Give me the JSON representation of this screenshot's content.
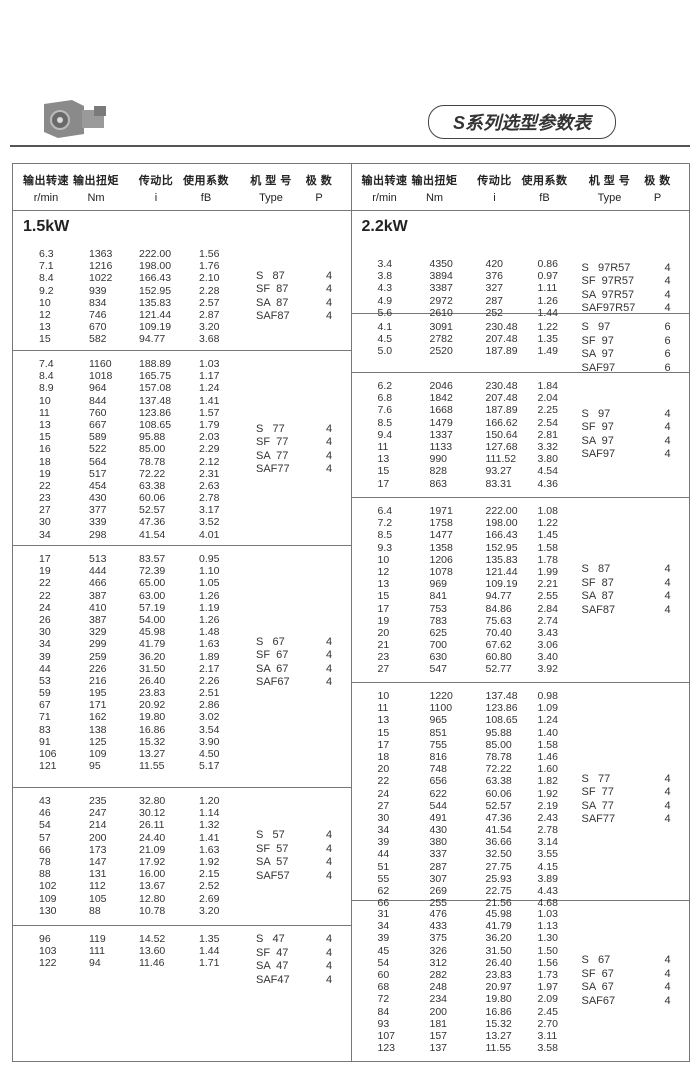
{
  "title": "S系列选型参数表",
  "header": {
    "speed_cn": "输出转速",
    "speed_en": "r/min",
    "torque_cn": "输出扭矩",
    "torque_en": "Nm",
    "ratio_cn": "传动比",
    "ratio_en": "i",
    "factor_cn": "使用系数",
    "factor_en": "fB",
    "type_cn": "机 型 号",
    "type_en": "Type",
    "poles_cn": "极  数",
    "poles_en": "P"
  },
  "sections": [
    {
      "power": "1.5kW",
      "groups": [
        {
          "rows": [
            [
              "6.3",
              "1363",
              "222.00",
              "1.56"
            ],
            [
              "7.1",
              "1216",
              "198.00",
              "1.76"
            ],
            [
              "8.4",
              "1022",
              "166.43",
              "2.10"
            ],
            [
              "9.2",
              "939",
              "152.95",
              "2.28"
            ],
            [
              "10",
              "834",
              "135.83",
              "2.57"
            ],
            [
              "12",
              "746",
              "121.44",
              "2.87"
            ],
            [
              "13",
              "670",
              "109.19",
              "3.20"
            ],
            [
              "15",
              "582",
              "94.77",
              "3.68"
            ]
          ],
          "types": [
            "S   87",
            "SF  87",
            "SA  87",
            "SAF87"
          ],
          "poles": [
            "4",
            "4",
            "4",
            "4"
          ]
        },
        {
          "rows": [
            [
              "7.4",
              "1160",
              "188.89",
              "1.03"
            ],
            [
              "8.4",
              "1018",
              "165.75",
              "1.17"
            ],
            [
              "8.9",
              "964",
              "157.08",
              "1.24"
            ],
            [
              "10",
              "844",
              "137.48",
              "1.41"
            ],
            [
              "11",
              "760",
              "123.86",
              "1.57"
            ],
            [
              "13",
              "667",
              "108.65",
              "1.79"
            ],
            [
              "15",
              "589",
              "95.88",
              "2.03"
            ],
            [
              "16",
              "522",
              "85.00",
              "2.29"
            ],
            [
              "18",
              "564",
              "78.78",
              "2.12"
            ],
            [
              "19",
              "517",
              "72.22",
              "2.31"
            ],
            [
              "22",
              "454",
              "63.38",
              "2.63"
            ],
            [
              "23",
              "430",
              "60.06",
              "2.78"
            ],
            [
              "27",
              "377",
              "52.57",
              "3.17"
            ],
            [
              "30",
              "339",
              "47.36",
              "3.52"
            ],
            [
              "34",
              "298",
              "41.54",
              "4.01"
            ]
          ],
          "types": [
            "S   77",
            "SF  77",
            "SA  77",
            "SAF77"
          ],
          "poles": [
            "4",
            "4",
            "4",
            "4"
          ]
        },
        {
          "rows": [
            [
              "17",
              "513",
              "83.57",
              "0.95"
            ],
            [
              "19",
              "444",
              "72.39",
              "1.10"
            ],
            [
              "22",
              "466",
              "65.00",
              "1.05"
            ],
            [
              "22",
              "387",
              "63.00",
              "1.26"
            ],
            [
              "24",
              "410",
              "57.19",
              "1.19"
            ],
            [
              "26",
              "387",
              "54.00",
              "1.26"
            ],
            [
              "30",
              "329",
              "45.98",
              "1.48"
            ],
            [
              "34",
              "299",
              "41.79",
              "1.63"
            ],
            [
              "39",
              "259",
              "36.20",
              "1.89"
            ],
            [
              "44",
              "226",
              "31.50",
              "2.17"
            ],
            [
              "53",
              "216",
              "26.40",
              "2.26"
            ],
            [
              "59",
              "195",
              "23.83",
              "2.51"
            ],
            [
              "67",
              "171",
              "20.92",
              "2.86"
            ],
            [
              "71",
              "162",
              "19.80",
              "3.02"
            ],
            [
              "83",
              "138",
              "16.86",
              "3.54"
            ],
            [
              "91",
              "125",
              "15.32",
              "3.90"
            ],
            [
              "106",
              "109",
              "13.27",
              "4.50"
            ],
            [
              "121",
              "95",
              "11.55",
              "5.17"
            ]
          ],
          "types": [
            "S   67",
            "SF  67",
            "SA  67",
            "SAF67"
          ],
          "poles": [
            "4",
            "4",
            "4",
            "4"
          ]
        },
        {
          "rows": [
            [
              "43",
              "235",
              "32.80",
              "1.20"
            ],
            [
              "46",
              "247",
              "30.12",
              "1.14"
            ],
            [
              "54",
              "214",
              "26.11",
              "1.32"
            ],
            [
              "57",
              "200",
              "24.40",
              "1.41"
            ],
            [
              "66",
              "173",
              "21.09",
              "1.63"
            ],
            [
              "78",
              "147",
              "17.92",
              "1.92"
            ],
            [
              "88",
              "131",
              "16.00",
              "2.15"
            ],
            [
              "102",
              "112",
              "13.67",
              "2.52"
            ],
            [
              "109",
              "105",
              "12.80",
              "2.69"
            ],
            [
              "130",
              "88",
              "10.78",
              "3.20"
            ]
          ],
          "types": [
            "S   57",
            "SF  57",
            "SA  57",
            "SAF57"
          ],
          "poles": [
            "4",
            "4",
            "4",
            "4"
          ]
        },
        {
          "rows": [
            [
              "96",
              "119",
              "14.52",
              "1.35"
            ],
            [
              "103",
              "111",
              "13.60",
              "1.44"
            ],
            [
              "122",
              "94",
              "11.46",
              "1.71"
            ]
          ],
          "types": [
            "S   47",
            "SF  47",
            "SA  47",
            "SAF47"
          ],
          "poles": [
            "4",
            "4",
            "4",
            "4"
          ]
        }
      ]
    },
    {
      "power": "2.2kW",
      "groups": [
        {
          "rows": [
            [
              "3.4",
              "4350",
              "420",
              "0.86"
            ],
            [
              "3.8",
              "3894",
              "376",
              "0.97"
            ],
            [
              "4.3",
              "3387",
              "327",
              "1.11"
            ],
            [
              "4.9",
              "2972",
              "287",
              "1.26"
            ],
            [
              "5.6",
              "2610",
              "252",
              "1.44"
            ]
          ],
          "types": [
            "S   97R57",
            "SF  97R57",
            "SA  97R57",
            "SAF97R57"
          ],
          "poles": [
            "4",
            "4",
            "4",
            "4"
          ]
        },
        {
          "rows": [
            [
              "4.1",
              "3091",
              "230.48",
              "1.22"
            ],
            [
              "4.5",
              "2782",
              "207.48",
              "1.35"
            ],
            [
              "5.0",
              "2520",
              "187.89",
              "1.49"
            ]
          ],
          "types": [
            "S   97",
            "SF  97",
            "SA  97",
            "SAF97"
          ],
          "poles": [
            "6",
            "6",
            "6",
            "6"
          ]
        },
        {
          "rows": [
            [
              "6.2",
              "2046",
              "230.48",
              "1.84"
            ],
            [
              "6.8",
              "1842",
              "207.48",
              "2.04"
            ],
            [
              "7.6",
              "1668",
              "187.89",
              "2.25"
            ],
            [
              "8.5",
              "1479",
              "166.62",
              "2.54"
            ],
            [
              "9.4",
              "1337",
              "150.64",
              "2.81"
            ],
            [
              "11",
              "1133",
              "127.68",
              "3.32"
            ],
            [
              "13",
              "990",
              "111.52",
              "3.80"
            ],
            [
              "15",
              "828",
              "93.27",
              "4.54"
            ],
            [
              "17",
              "863",
              "83.31",
              "4.36"
            ]
          ],
          "types": [
            "S   97",
            "SF  97",
            "SA  97",
            "SAF97"
          ],
          "poles": [
            "4",
            "4",
            "4",
            "4"
          ]
        },
        {
          "rows": [
            [
              "6.4",
              "1971",
              "222.00",
              "1.08"
            ],
            [
              "7.2",
              "1758",
              "198.00",
              "1.22"
            ],
            [
              "8.5",
              "1477",
              "166.43",
              "1.45"
            ],
            [
              "9.3",
              "1358",
              "152.95",
              "1.58"
            ],
            [
              "10",
              "1206",
              "135.83",
              "1.78"
            ],
            [
              "12",
              "1078",
              "121.44",
              "1.99"
            ],
            [
              "13",
              "969",
              "109.19",
              "2.21"
            ],
            [
              "15",
              "841",
              "94.77",
              "2.55"
            ],
            [
              "17",
              "753",
              "84.86",
              "2.84"
            ],
            [
              "19",
              "783",
              "75.63",
              "2.74"
            ],
            [
              "20",
              "625",
              "70.40",
              "3.43"
            ],
            [
              "21",
              "700",
              "67.62",
              "3.06"
            ],
            [
              "23",
              "630",
              "60.80",
              "3.40"
            ],
            [
              "27",
              "547",
              "52.77",
              "3.92"
            ]
          ],
          "types": [
            "S   87",
            "SF  87",
            "SA  87",
            "SAF87"
          ],
          "poles": [
            "4",
            "4",
            "4",
            "4"
          ]
        },
        {
          "rows": [
            [
              "10",
              "1220",
              "137.48",
              "0.98"
            ],
            [
              "11",
              "1100",
              "123.86",
              "1.09"
            ],
            [
              "13",
              "965",
              "108.65",
              "1.24"
            ],
            [
              "15",
              "851",
              "95.88",
              "1.40"
            ],
            [
              "17",
              "755",
              "85.00",
              "1.58"
            ],
            [
              "18",
              "816",
              "78.78",
              "1.46"
            ],
            [
              "20",
              "748",
              "72.22",
              "1.60"
            ],
            [
              "22",
              "656",
              "63.38",
              "1.82"
            ],
            [
              "24",
              "622",
              "60.06",
              "1.92"
            ],
            [
              "27",
              "544",
              "52.57",
              "2.19"
            ],
            [
              "30",
              "491",
              "47.36",
              "2.43"
            ],
            [
              "34",
              "430",
              "41.54",
              "2.78"
            ],
            [
              "39",
              "380",
              "36.66",
              "3.14"
            ],
            [
              "44",
              "337",
              "32.50",
              "3.55"
            ],
            [
              "51",
              "287",
              "27.75",
              "4.15"
            ],
            [
              "55",
              "307",
              "25.93",
              "3.89"
            ],
            [
              "62",
              "269",
              "22.75",
              "4.43"
            ],
            [
              "66",
              "255",
              "21.56",
              "4.68"
            ]
          ],
          "types": [
            "S   77",
            "SF  77",
            "SA  77",
            "SAF77"
          ],
          "poles": [
            "4",
            "4",
            "4",
            "4"
          ]
        },
        {
          "rows": [
            [
              "31",
              "476",
              "45.98",
              "1.03"
            ],
            [
              "34",
              "433",
              "41.79",
              "1.13"
            ],
            [
              "39",
              "375",
              "36.20",
              "1.30"
            ],
            [
              "45",
              "326",
              "31.50",
              "1.50"
            ],
            [
              "54",
              "312",
              "26.40",
              "1.56"
            ],
            [
              "60",
              "282",
              "23.83",
              "1.73"
            ],
            [
              "68",
              "248",
              "20.97",
              "1.97"
            ],
            [
              "72",
              "234",
              "19.80",
              "2.09"
            ],
            [
              "84",
              "200",
              "16.86",
              "2.45"
            ],
            [
              "93",
              "181",
              "15.32",
              "2.70"
            ],
            [
              "107",
              "157",
              "13.27",
              "3.11"
            ],
            [
              "123",
              "137",
              "11.55",
              "3.58"
            ]
          ],
          "types": [
            "S   67",
            "SF  67",
            "SA  67",
            "SAF67"
          ],
          "poles": [
            "4",
            "4",
            "4",
            "4"
          ]
        }
      ]
    }
  ]
}
